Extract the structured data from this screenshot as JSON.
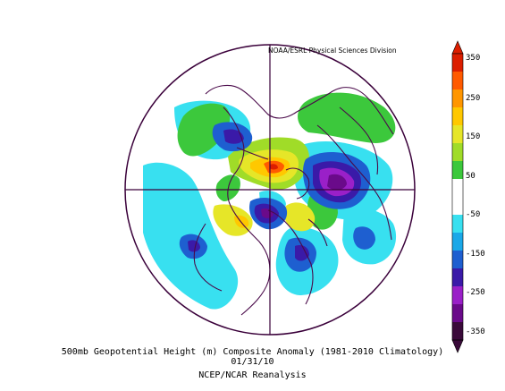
{
  "credit": "NOAA/ESRL Physical Sciences Division",
  "caption": {
    "line1": "500mb Geopotential Height (m) Composite Anomaly (1981-2010 Climatology)",
    "line2": "01/31/10",
    "line3": "NCEP/NCAR Reanalysis"
  },
  "colorbar": {
    "tick_labels": [
      "350",
      "250",
      "150",
      "50",
      "-50",
      "-150",
      "-250",
      "-350"
    ],
    "colors": [
      "#3a0a3a",
      "#6a0a8a",
      "#9a20c8",
      "#3a1aa8",
      "#1e5fd0",
      "#1aa8e8",
      "#38e0f0",
      "#ffffff",
      "#ffffff",
      "#3cc83c",
      "#a0dc28",
      "#e6e628",
      "#ffc800",
      "#ff9600",
      "#ff5a00",
      "#dc1e00"
    ]
  },
  "colors": {
    "ocean_bg": "#ffffff",
    "coastline": "#4a0a4a",
    "frame": "#3a003a"
  }
}
